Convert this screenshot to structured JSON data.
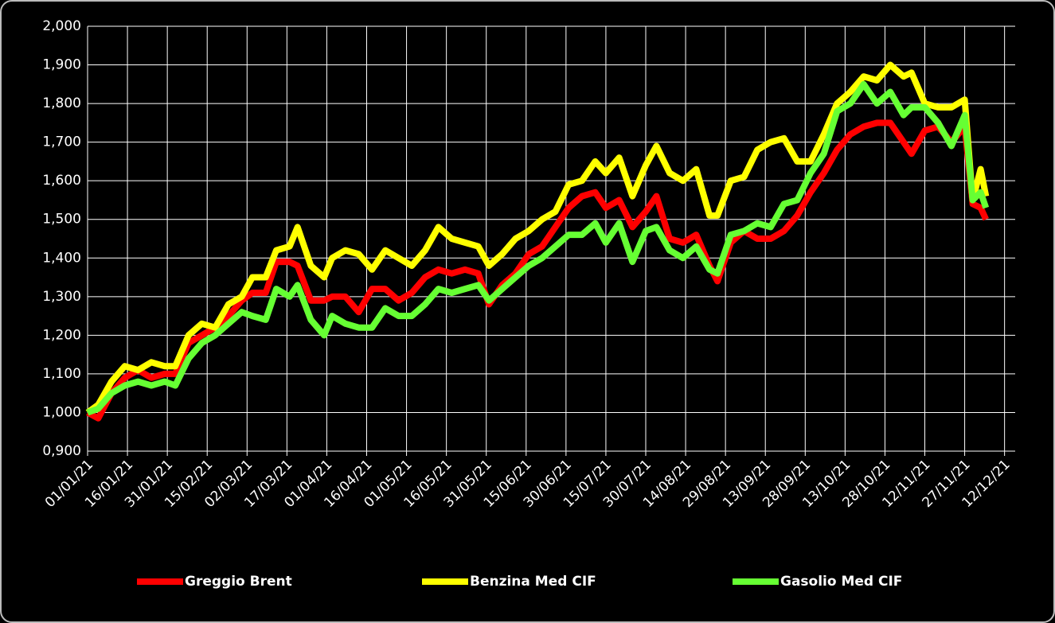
{
  "chart_data": {
    "type": "line",
    "x": [
      "01/01/21",
      "05/01/21",
      "10/01/21",
      "15/01/21",
      "20/01/21",
      "25/01/21",
      "30/01/21",
      "03/02/21",
      "08/02/21",
      "13/02/21",
      "18/02/21",
      "23/02/21",
      "28/02/21",
      "04/03/21",
      "09/03/21",
      "13/03/21",
      "18/03/21",
      "21/03/21",
      "26/03/21",
      "31/03/21",
      "03/04/21",
      "08/04/21",
      "13/04/21",
      "18/04/21",
      "23/04/21",
      "28/04/21",
      "03/05/21",
      "08/05/21",
      "13/05/21",
      "18/05/21",
      "23/05/21",
      "28/05/21",
      "01/06/21",
      "06/06/21",
      "11/06/21",
      "16/06/21",
      "21/06/21",
      "26/06/21",
      "01/07/21",
      "06/07/21",
      "11/07/21",
      "15/07/21",
      "20/07/21",
      "25/07/21",
      "30/07/21",
      "03/08/21",
      "08/08/21",
      "13/08/21",
      "18/08/21",
      "23/08/21",
      "26/08/21",
      "31/08/21",
      "05/09/21",
      "10/09/21",
      "15/09/21",
      "20/09/21",
      "25/09/21",
      "30/09/21",
      "05/10/21",
      "10/10/21",
      "15/10/21",
      "20/10/21",
      "25/10/21",
      "30/10/21",
      "04/11/21",
      "07/11/21",
      "12/11/21",
      "17/11/21",
      "22/11/21",
      "27/11/21",
      "30/11/21",
      "03/12/21",
      "05/12/21"
    ],
    "series": [
      {
        "name": "Greggio Brent",
        "color": "#ff0000",
        "values": [
          1.0,
          0.985,
          1.05,
          1.09,
          1.11,
          1.09,
          1.1,
          1.1,
          1.18,
          1.2,
          1.22,
          1.25,
          1.29,
          1.31,
          1.31,
          1.39,
          1.39,
          1.38,
          1.29,
          1.29,
          1.3,
          1.3,
          1.26,
          1.32,
          1.32,
          1.29,
          1.31,
          1.35,
          1.37,
          1.36,
          1.37,
          1.36,
          1.28,
          1.33,
          1.36,
          1.41,
          1.43,
          1.48,
          1.53,
          1.56,
          1.57,
          1.53,
          1.55,
          1.48,
          1.52,
          1.56,
          1.45,
          1.44,
          1.46,
          1.38,
          1.34,
          1.44,
          1.47,
          1.45,
          1.45,
          1.47,
          1.51,
          1.57,
          1.62,
          1.68,
          1.72,
          1.74,
          1.75,
          1.75,
          1.7,
          1.67,
          1.73,
          1.74,
          1.7,
          1.74,
          1.54,
          1.53,
          1.5
        ]
      },
      {
        "name": "Benzina Med CIF",
        "color": "#ffff00",
        "values": [
          1.0,
          1.02,
          1.08,
          1.12,
          1.11,
          1.13,
          1.12,
          1.12,
          1.2,
          1.23,
          1.22,
          1.28,
          1.3,
          1.35,
          1.35,
          1.42,
          1.43,
          1.48,
          1.38,
          1.35,
          1.4,
          1.42,
          1.41,
          1.37,
          1.42,
          1.4,
          1.38,
          1.42,
          1.48,
          1.45,
          1.44,
          1.43,
          1.38,
          1.41,
          1.45,
          1.47,
          1.5,
          1.52,
          1.59,
          1.6,
          1.65,
          1.62,
          1.66,
          1.56,
          1.64,
          1.69,
          1.62,
          1.6,
          1.63,
          1.51,
          1.51,
          1.6,
          1.61,
          1.68,
          1.7,
          1.71,
          1.65,
          1.65,
          1.72,
          1.8,
          1.83,
          1.87,
          1.86,
          1.9,
          1.87,
          1.88,
          1.8,
          1.79,
          1.79,
          1.81,
          1.55,
          1.63,
          1.56
        ]
      },
      {
        "name": "Gasolio Med CIF",
        "color": "#66ff33",
        "values": [
          1.0,
          1.01,
          1.05,
          1.07,
          1.08,
          1.07,
          1.08,
          1.07,
          1.14,
          1.18,
          1.2,
          1.23,
          1.26,
          1.25,
          1.24,
          1.32,
          1.3,
          1.33,
          1.24,
          1.2,
          1.25,
          1.23,
          1.22,
          1.22,
          1.27,
          1.25,
          1.25,
          1.28,
          1.32,
          1.31,
          1.32,
          1.33,
          1.29,
          1.32,
          1.35,
          1.38,
          1.4,
          1.43,
          1.46,
          1.46,
          1.49,
          1.44,
          1.49,
          1.39,
          1.47,
          1.48,
          1.42,
          1.4,
          1.43,
          1.37,
          1.36,
          1.46,
          1.47,
          1.49,
          1.48,
          1.54,
          1.55,
          1.62,
          1.67,
          1.78,
          1.8,
          1.85,
          1.8,
          1.83,
          1.77,
          1.79,
          1.79,
          1.75,
          1.69,
          1.77,
          1.55,
          1.57,
          1.53
        ]
      }
    ],
    "xlim": [
      "01/01/21",
      "16/12/21"
    ],
    "xticks": [
      "01/01/21",
      "16/01/21",
      "31/01/21",
      "15/02/21",
      "02/03/21",
      "17/03/21",
      "01/04/21",
      "16/04/21",
      "01/05/21",
      "16/05/21",
      "31/05/21",
      "15/06/21",
      "30/06/21",
      "15/07/21",
      "30/07/21",
      "14/08/21",
      "29/08/21",
      "13/09/21",
      "28/09/21",
      "13/10/21",
      "28/10/21",
      "12/11/21",
      "27/11/21",
      "12/12/21"
    ],
    "ylim": [
      0.9,
      2.0
    ],
    "yticks": [
      {
        "value": 0.9,
        "label": "0,900"
      },
      {
        "value": 1.0,
        "label": "1,000"
      },
      {
        "value": 1.1,
        "label": "1,100"
      },
      {
        "value": 1.2,
        "label": "1,200"
      },
      {
        "value": 1.3,
        "label": "1,300"
      },
      {
        "value": 1.4,
        "label": "1,400"
      },
      {
        "value": 1.5,
        "label": "1,500"
      },
      {
        "value": 1.6,
        "label": "1,600"
      },
      {
        "value": 1.7,
        "label": "1,700"
      },
      {
        "value": 1.8,
        "label": "1,800"
      },
      {
        "value": 1.9,
        "label": "1,900"
      },
      {
        "value": 2.0,
        "label": "2,000"
      }
    ],
    "grid": true,
    "legend": "bottom"
  }
}
